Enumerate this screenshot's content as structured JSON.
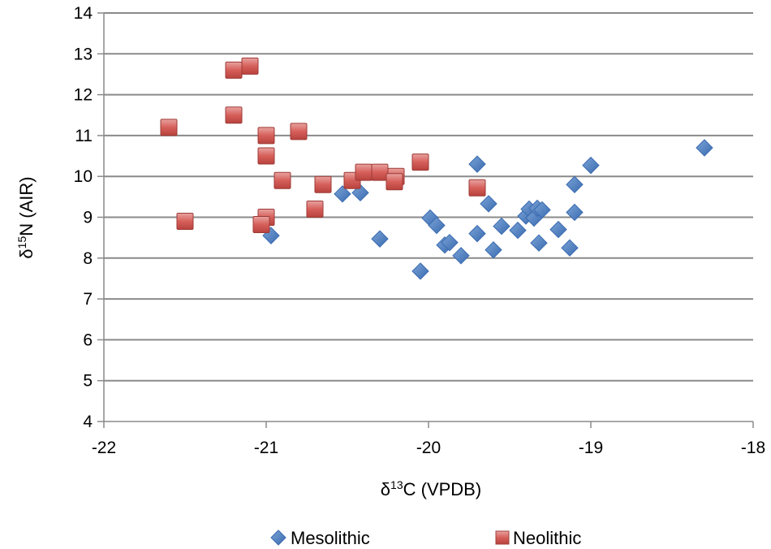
{
  "chart_data": {
    "type": "scatter",
    "title": "",
    "xlabel_prefix": "δ",
    "xlabel_sup": "13",
    "xlabel_suffix": "C (VPDB)",
    "ylabel_prefix": "δ",
    "ylabel_sup": "15",
    "ylabel_suffix": "N (AIR)",
    "xlim": [
      -22,
      -18
    ],
    "ylim": [
      4,
      14
    ],
    "x_ticks": [
      -22,
      -21,
      -20,
      -19,
      -18
    ],
    "y_ticks": [
      4,
      5,
      6,
      7,
      8,
      9,
      10,
      11,
      12,
      13,
      14
    ],
    "grid": "horizontal",
    "legend_position": "bottom",
    "series": [
      {
        "name": "Mesolithic",
        "marker": "diamond",
        "color": "#4F81BD",
        "points": [
          {
            "x": -20.97,
            "y": 8.55
          },
          {
            "x": -20.53,
            "y": 9.57
          },
          {
            "x": -20.42,
            "y": 9.6
          },
          {
            "x": -20.3,
            "y": 8.47
          },
          {
            "x": -20.05,
            "y": 7.68
          },
          {
            "x": -19.99,
            "y": 8.98
          },
          {
            "x": -19.95,
            "y": 8.8
          },
          {
            "x": -19.9,
            "y": 8.32
          },
          {
            "x": -19.87,
            "y": 8.38
          },
          {
            "x": -19.8,
            "y": 8.06
          },
          {
            "x": -19.7,
            "y": 10.3
          },
          {
            "x": -19.7,
            "y": 8.6
          },
          {
            "x": -19.63,
            "y": 9.33
          },
          {
            "x": -19.6,
            "y": 8.2
          },
          {
            "x": -19.55,
            "y": 8.78
          },
          {
            "x": -19.45,
            "y": 8.68
          },
          {
            "x": -19.4,
            "y": 9.03
          },
          {
            "x": -19.38,
            "y": 9.2
          },
          {
            "x": -19.35,
            "y": 8.98
          },
          {
            "x": -19.33,
            "y": 9.22
          },
          {
            "x": -19.32,
            "y": 8.37
          },
          {
            "x": -19.3,
            "y": 9.18
          },
          {
            "x": -19.2,
            "y": 8.7
          },
          {
            "x": -19.13,
            "y": 8.25
          },
          {
            "x": -19.1,
            "y": 9.8
          },
          {
            "x": -19.1,
            "y": 9.12
          },
          {
            "x": -19.0,
            "y": 10.27
          },
          {
            "x": -18.3,
            "y": 10.7
          }
        ]
      },
      {
        "name": "Neolithic",
        "marker": "square",
        "color": "#C0504D",
        "points": [
          {
            "x": -21.6,
            "y": 11.2
          },
          {
            "x": -21.5,
            "y": 8.9
          },
          {
            "x": -21.2,
            "y": 12.6
          },
          {
            "x": -21.1,
            "y": 12.7
          },
          {
            "x": -21.2,
            "y": 11.5
          },
          {
            "x": -21.0,
            "y": 11.0
          },
          {
            "x": -21.0,
            "y": 10.5
          },
          {
            "x": -21.0,
            "y": 9.0
          },
          {
            "x": -21.03,
            "y": 8.82
          },
          {
            "x": -20.9,
            "y": 9.9
          },
          {
            "x": -20.8,
            "y": 11.1
          },
          {
            "x": -20.7,
            "y": 9.2
          },
          {
            "x": -20.65,
            "y": 9.8
          },
          {
            "x": -20.47,
            "y": 9.9
          },
          {
            "x": -20.4,
            "y": 10.1
          },
          {
            "x": -20.3,
            "y": 10.1
          },
          {
            "x": -20.2,
            "y": 10.0
          },
          {
            "x": -20.21,
            "y": 9.87
          },
          {
            "x": -20.05,
            "y": 10.35
          },
          {
            "x": -19.7,
            "y": 9.72
          }
        ]
      }
    ]
  }
}
